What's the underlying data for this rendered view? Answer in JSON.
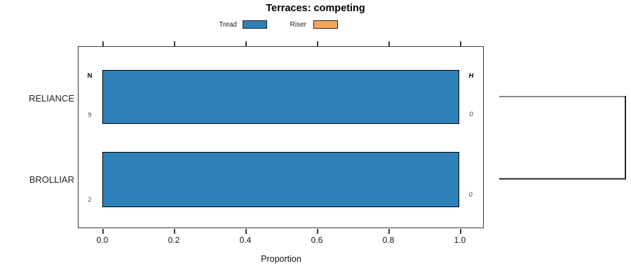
{
  "chart_data": {
    "type": "bar",
    "orientation": "horizontal",
    "title": "Terraces: competing",
    "xlabel": "Proportion",
    "xlim": [
      0,
      1.05
    ],
    "x_ticks": [
      "0.0",
      "0.2",
      "0.4",
      "0.6",
      "0.8",
      "1.0"
    ],
    "categories": [
      "RELIANCE",
      "BROLLIAR"
    ],
    "series": [
      {
        "name": "Tread",
        "color": "#2e81b8",
        "values": [
          1.0,
          1.0
        ]
      },
      {
        "name": "Riser",
        "color": "#f7a65b",
        "values": [
          0.0,
          0.0
        ]
      }
    ],
    "annotations": {
      "left_header": "N",
      "right_header": "H",
      "left_values": [
        "9",
        "2"
      ],
      "right_values": [
        "0",
        "0"
      ]
    },
    "legend_position": "top",
    "grid": false,
    "right_panel": {
      "type": "dendrogram-bracket",
      "links_categories": [
        "RELIANCE",
        "BROLLIAR"
      ],
      "merge_height": 0,
      "top_line_color": "#888888",
      "bottom_line_color": "#262626"
    }
  }
}
